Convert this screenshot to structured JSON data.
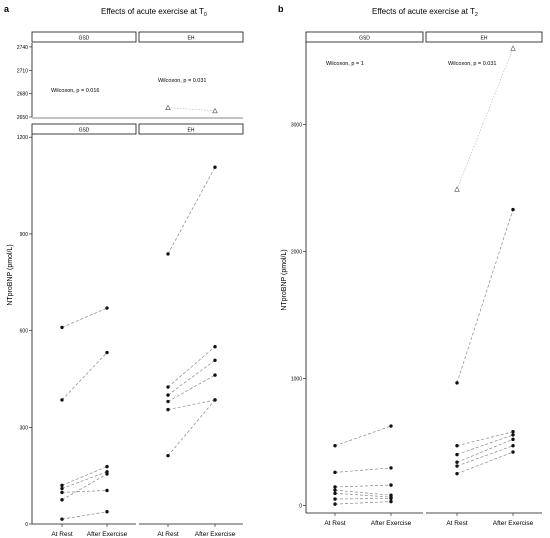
{
  "panel_a": {
    "letter": "a",
    "title_main": "Effects of acute exercise at T",
    "title_sub": "0",
    "ylabel": "NTproBNP (pmol/L)",
    "facets": [
      "GSD",
      "EH"
    ],
    "xticks": [
      "At Rest",
      "After Exercise"
    ],
    "upper_yticks": [
      "2650",
      "2680",
      "2710",
      "2740"
    ],
    "lower_yticks": [
      "0",
      "300",
      "600",
      "900",
      "1200"
    ],
    "wilcoxon": [
      "Wilcoxon, p = 0.016",
      "Wilcoxon, p = 0.031"
    ]
  },
  "panel_b": {
    "letter": "b",
    "title_main": "Effects of acute exercise at T",
    "title_sub": "2",
    "ylabel": "NTproBNP (pmol/L)",
    "facets": [
      "GSD",
      "EH"
    ],
    "xticks": [
      "At Rest",
      "After Exercise"
    ],
    "yticks": [
      "0",
      "1000",
      "2000",
      "3000"
    ],
    "wilcoxon": [
      "Wilcoxon, p = 1",
      "Wilcoxon, p = 0.031"
    ]
  },
  "chart_data": [
    {
      "type": "scatter",
      "panel": "a",
      "categories": [
        "At Rest",
        "After Exercise"
      ],
      "ylim_upper": [
        2650,
        2745
      ],
      "ylim_lower": [
        0,
        1210
      ],
      "groups": [
        {
          "facet": "GSD",
          "pairs": [
            [
              610,
              670
            ],
            [
              385,
              532
            ],
            [
              120,
              178
            ],
            [
              110,
              162
            ],
            [
              98,
              104
            ],
            [
              75,
              155
            ],
            [
              15,
              38
            ]
          ],
          "outlier_pairs": []
        },
        {
          "facet": "EH",
          "pairs": [
            [
              838,
              1107
            ],
            [
              425,
              550
            ],
            [
              400,
              508
            ],
            [
              380,
              462
            ],
            [
              355,
              385
            ],
            [
              212,
              385
            ]
          ],
          "outlier_pairs": [
            [
              2662,
              2658
            ]
          ]
        }
      ]
    },
    {
      "type": "scatter",
      "panel": "b",
      "categories": [
        "At Rest",
        "After Exercise"
      ],
      "ylim": [
        -60,
        3650
      ],
      "groups": [
        {
          "facet": "GSD",
          "pairs": [
            [
              470,
              625
            ],
            [
              260,
              295
            ],
            [
              145,
              160
            ],
            [
              120,
              80
            ],
            [
              95,
              65
            ],
            [
              50,
              55
            ],
            [
              10,
              30
            ]
          ],
          "outlier_pairs": []
        },
        {
          "facet": "EH",
          "pairs": [
            [
              965,
              2330
            ],
            [
              470,
              580
            ],
            [
              400,
              555
            ],
            [
              340,
              520
            ],
            [
              310,
              470
            ],
            [
              250,
              420
            ]
          ],
          "outlier_pairs": [
            [
              2490,
              3600
            ]
          ]
        }
      ]
    }
  ]
}
